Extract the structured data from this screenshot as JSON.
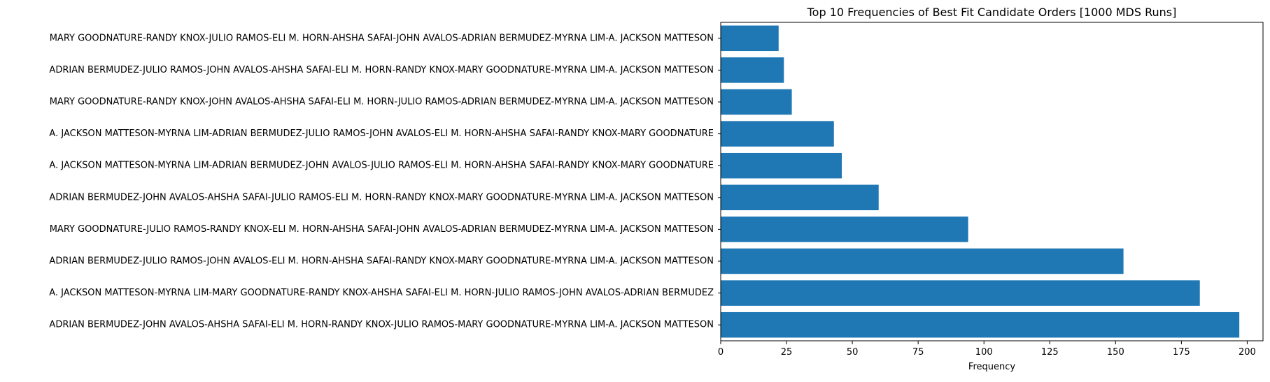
{
  "chart_data": {
    "type": "bar",
    "orientation": "horizontal",
    "title": "Top 10 Frequencies of Best Fit Candidate Orders [1000 MDS Runs]",
    "xlabel": "Frequency",
    "ylabel": "",
    "xlim": [
      0,
      206
    ],
    "x_ticks": [
      0,
      25,
      50,
      75,
      100,
      125,
      150,
      175,
      200
    ],
    "grid": false,
    "bar_color": "#1f77b4",
    "categories": [
      "ADRIAN BERMUDEZ-JOHN AVALOS-AHSHA SAFAI-ELI M. HORN-RANDY KNOX-JULIO RAMOS-MARY GOODNATURE-MYRNA LIM-A. JACKSON MATTESON",
      "A. JACKSON MATTESON-MYRNA LIM-MARY GOODNATURE-RANDY KNOX-AHSHA SAFAI-ELI M. HORN-JULIO RAMOS-JOHN AVALOS-ADRIAN BERMUDEZ",
      "ADRIAN BERMUDEZ-JULIO RAMOS-JOHN AVALOS-ELI M. HORN-AHSHA SAFAI-RANDY KNOX-MARY GOODNATURE-MYRNA LIM-A. JACKSON MATTESON",
      "MARY GOODNATURE-JULIO RAMOS-RANDY KNOX-ELI M. HORN-AHSHA SAFAI-JOHN AVALOS-ADRIAN BERMUDEZ-MYRNA LIM-A. JACKSON MATTESON",
      "ADRIAN BERMUDEZ-JOHN AVALOS-AHSHA SAFAI-JULIO RAMOS-ELI M. HORN-RANDY KNOX-MARY GOODNATURE-MYRNA LIM-A. JACKSON MATTESON",
      "A. JACKSON MATTESON-MYRNA LIM-ADRIAN BERMUDEZ-JOHN AVALOS-JULIO RAMOS-ELI M. HORN-AHSHA SAFAI-RANDY KNOX-MARY GOODNATURE",
      "A. JACKSON MATTESON-MYRNA LIM-ADRIAN BERMUDEZ-JULIO RAMOS-JOHN AVALOS-ELI M. HORN-AHSHA SAFAI-RANDY KNOX-MARY GOODNATURE",
      "MARY GOODNATURE-RANDY KNOX-JOHN AVALOS-AHSHA SAFAI-ELI M. HORN-JULIO RAMOS-ADRIAN BERMUDEZ-MYRNA LIM-A. JACKSON MATTESON",
      "ADRIAN BERMUDEZ-JULIO RAMOS-JOHN AVALOS-AHSHA SAFAI-ELI M. HORN-RANDY KNOX-MARY GOODNATURE-MYRNA LIM-A. JACKSON MATTESON",
      "MARY GOODNATURE-RANDY KNOX-JULIO RAMOS-ELI M. HORN-AHSHA SAFAI-JOHN AVALOS-ADRIAN BERMUDEZ-MYRNA LIM-A. JACKSON MATTESON"
    ],
    "values": [
      197,
      182,
      153,
      94,
      60,
      46,
      43,
      27,
      24,
      22
    ]
  }
}
